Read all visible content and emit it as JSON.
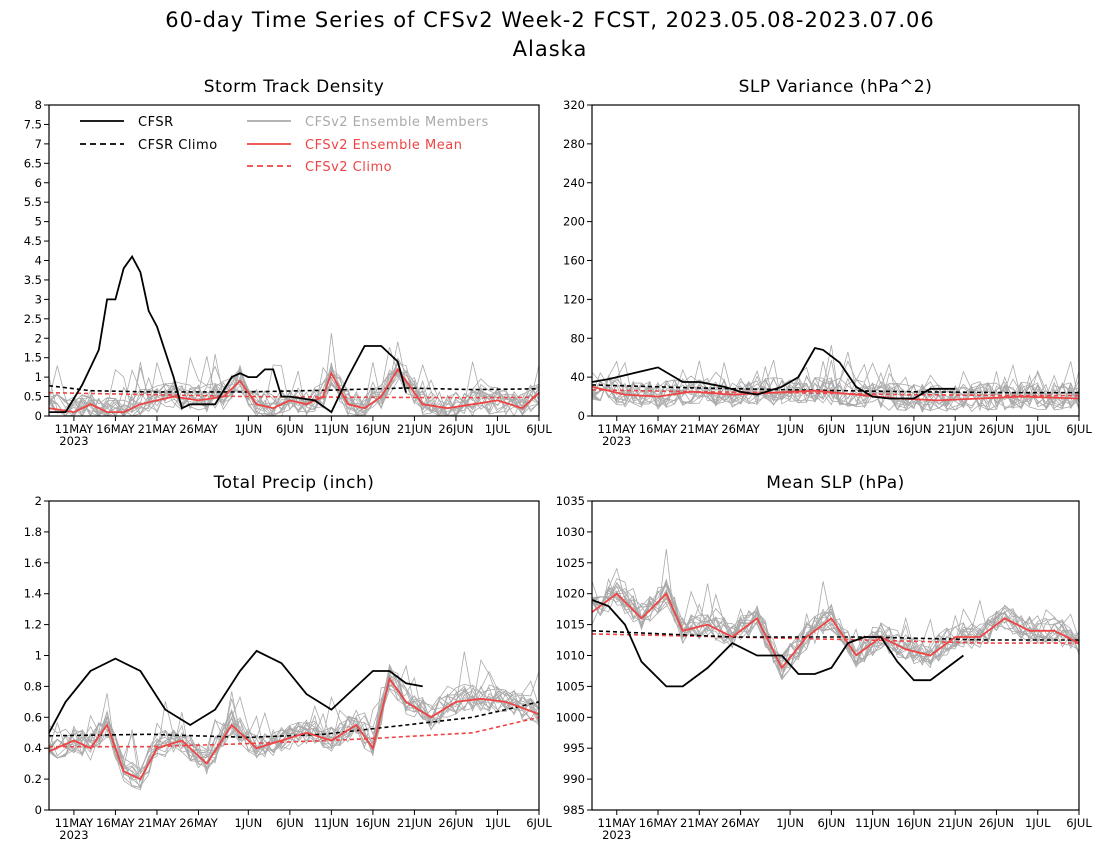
{
  "title_line1": "60-day Time Series of CFSv2 Week-2 FCST, 2023.05.08-2023.07.06",
  "title_line2": "Alaska",
  "legend": {
    "cfsr": "CFSR",
    "cfsr_climo": "CFSR Climo",
    "members": "CFSv2 Ensemble Members",
    "ens_mean": "CFSv2 Ensemble Mean",
    "cfsv2_climo": "CFSv2 Climo"
  },
  "colors": {
    "cfsr": "#000000",
    "cfsr_climo": "#000000",
    "members": "#aaaaaa",
    "ens_mean": "#ee4444",
    "cfsv2_climo": "#ee4444"
  },
  "x_axis": {
    "start_date": "2023-05-08",
    "end_date": "2023-07-06",
    "tick_labels": [
      "11MAY",
      "16MAY",
      "21MAY",
      "26MAY",
      "1JUN",
      "6JUN",
      "11JUN",
      "16JUN",
      "21JUN",
      "26JUN",
      "1JUL",
      "6JUL"
    ],
    "year_label": "2023"
  },
  "chart_data": [
    {
      "type": "line",
      "title": "Storm Track Density",
      "ylim": [
        0,
        8
      ],
      "yticks": [
        "0",
        "0.5",
        "1",
        "1.5",
        "2",
        "2.5",
        "3",
        "3.5",
        "4",
        "4.5",
        "5",
        "5.5",
        "6",
        "6.5",
        "7",
        "7.5",
        "8"
      ],
      "grid": false,
      "legend_position": "top",
      "series": [
        {
          "name": "CFSR",
          "style": "solid",
          "color": "#000000",
          "x": [
            "2023-05-08",
            "2023-05-10",
            "2023-05-12",
            "2023-05-14",
            "2023-05-15",
            "2023-05-16",
            "2023-05-17",
            "2023-05-18",
            "2023-05-19",
            "2023-05-20",
            "2023-05-21",
            "2023-05-23",
            "2023-05-24",
            "2023-05-25",
            "2023-05-26",
            "2023-05-28",
            "2023-05-30",
            "2023-05-31",
            "2023-06-01",
            "2023-06-02",
            "2023-06-03",
            "2023-06-04",
            "2023-06-05",
            "2023-06-06",
            "2023-06-09",
            "2023-06-11",
            "2023-06-13",
            "2023-06-15",
            "2023-06-17",
            "2023-06-19",
            "2023-06-20"
          ],
          "values": [
            0.1,
            0.1,
            0.8,
            1.7,
            3.0,
            3.0,
            3.8,
            4.1,
            3.7,
            2.7,
            2.3,
            1.0,
            0.2,
            0.3,
            0.3,
            0.3,
            1.0,
            1.1,
            1.0,
            1.0,
            1.2,
            1.2,
            0.5,
            0.5,
            0.4,
            0.1,
            1.0,
            1.8,
            1.8,
            1.4,
            0.6
          ]
        },
        {
          "name": "CFSR Climo",
          "style": "dashed",
          "color": "#000000",
          "x": [
            "2023-05-08",
            "2023-05-13",
            "2023-05-20",
            "2023-06-01",
            "2023-06-10",
            "2023-06-20",
            "2023-06-28",
            "2023-07-06"
          ],
          "values": [
            0.78,
            0.65,
            0.62,
            0.62,
            0.66,
            0.72,
            0.68,
            0.7
          ]
        },
        {
          "name": "CFSv2 Ensemble Mean",
          "style": "solid",
          "color": "#ee4444",
          "x": [
            "2023-05-08",
            "2023-05-11",
            "2023-05-13",
            "2023-05-15",
            "2023-05-17",
            "2023-05-19",
            "2023-05-21",
            "2023-05-23",
            "2023-05-26",
            "2023-05-29",
            "2023-05-31",
            "2023-06-02",
            "2023-06-04",
            "2023-06-06",
            "2023-06-08",
            "2023-06-10",
            "2023-06-11",
            "2023-06-13",
            "2023-06-15",
            "2023-06-17",
            "2023-06-19",
            "2023-06-22",
            "2023-06-25",
            "2023-06-28",
            "2023-07-01",
            "2023-07-04",
            "2023-07-06"
          ],
          "values": [
            0.2,
            0.1,
            0.3,
            0.1,
            0.1,
            0.3,
            0.4,
            0.5,
            0.4,
            0.5,
            0.9,
            0.3,
            0.2,
            0.4,
            0.3,
            0.5,
            1.1,
            0.3,
            0.2,
            0.5,
            1.2,
            0.3,
            0.2,
            0.3,
            0.4,
            0.2,
            0.6
          ]
        },
        {
          "name": "CFSv2 Climo",
          "style": "dashed",
          "color": "#ee4444",
          "x": [
            "2023-05-08",
            "2023-05-20",
            "2023-06-01",
            "2023-06-15",
            "2023-06-28",
            "2023-07-06"
          ],
          "values": [
            0.6,
            0.55,
            0.5,
            0.48,
            0.47,
            0.48
          ]
        }
      ]
    },
    {
      "type": "line",
      "title": "SLP Variance (hPa^2)",
      "ylim": [
        0,
        320
      ],
      "yticks": [
        "0",
        "40",
        "80",
        "120",
        "160",
        "200",
        "240",
        "280",
        "320"
      ],
      "grid": false,
      "series": [
        {
          "name": "CFSR",
          "style": "solid",
          "color": "#000000",
          "x": [
            "2023-05-08",
            "2023-05-10",
            "2023-05-12",
            "2023-05-16",
            "2023-05-19",
            "2023-05-21",
            "2023-05-24",
            "2023-05-26",
            "2023-05-28",
            "2023-05-31",
            "2023-06-02",
            "2023-06-03",
            "2023-06-04",
            "2023-06-05",
            "2023-06-07",
            "2023-06-09",
            "2023-06-11",
            "2023-06-13",
            "2023-06-16",
            "2023-06-18",
            "2023-06-21"
          ],
          "values": [
            35,
            38,
            42,
            50,
            35,
            35,
            30,
            25,
            22,
            30,
            40,
            55,
            70,
            68,
            55,
            30,
            20,
            18,
            18,
            28,
            28
          ]
        },
        {
          "name": "CFSR Climo",
          "style": "dashed",
          "color": "#000000",
          "x": [
            "2023-05-08",
            "2023-05-20",
            "2023-06-01",
            "2023-06-15",
            "2023-06-28",
            "2023-07-06"
          ],
          "values": [
            32,
            29,
            27,
            25,
            24,
            24
          ]
        },
        {
          "name": "CFSv2 Ensemble Mean",
          "style": "solid",
          "color": "#ee4444",
          "x": [
            "2023-05-08",
            "2023-05-12",
            "2023-05-16",
            "2023-05-20",
            "2023-05-25",
            "2023-05-30",
            "2023-06-04",
            "2023-06-09",
            "2023-06-14",
            "2023-06-19",
            "2023-06-24",
            "2023-06-29",
            "2023-07-06"
          ],
          "values": [
            30,
            22,
            20,
            25,
            22,
            24,
            26,
            22,
            18,
            16,
            18,
            20,
            18
          ]
        },
        {
          "name": "CFSv2 Climo",
          "style": "dashed",
          "color": "#ee4444",
          "x": [
            "2023-05-08",
            "2023-05-20",
            "2023-06-01",
            "2023-06-15",
            "2023-06-28",
            "2023-07-06"
          ],
          "values": [
            27,
            25,
            24,
            22,
            21,
            21
          ]
        }
      ]
    },
    {
      "type": "line",
      "title": "Total Precip (inch)",
      "ylim": [
        0,
        2
      ],
      "yticks": [
        "0",
        "0.2",
        "0.4",
        "0.6",
        "0.8",
        "1",
        "1.2",
        "1.4",
        "1.6",
        "1.8",
        "2"
      ],
      "grid": false,
      "series": [
        {
          "name": "CFSR",
          "style": "solid",
          "color": "#000000",
          "x": [
            "2023-05-08",
            "2023-05-10",
            "2023-05-13",
            "2023-05-16",
            "2023-05-19",
            "2023-05-22",
            "2023-05-25",
            "2023-05-28",
            "2023-05-31",
            "2023-06-02",
            "2023-06-05",
            "2023-06-08",
            "2023-06-11",
            "2023-06-13",
            "2023-06-16",
            "2023-06-18",
            "2023-06-20",
            "2023-06-22"
          ],
          "values": [
            0.5,
            0.7,
            0.9,
            0.98,
            0.9,
            0.65,
            0.55,
            0.65,
            0.9,
            1.03,
            0.95,
            0.75,
            0.65,
            0.75,
            0.9,
            0.9,
            0.82,
            0.8
          ]
        },
        {
          "name": "CFSR Climo",
          "style": "dashed",
          "color": "#000000",
          "x": [
            "2023-05-08",
            "2023-05-20",
            "2023-06-01",
            "2023-06-10",
            "2023-06-20",
            "2023-06-28",
            "2023-07-06"
          ],
          "values": [
            0.48,
            0.49,
            0.47,
            0.49,
            0.55,
            0.6,
            0.7
          ]
        },
        {
          "name": "CFSv2 Ensemble Mean",
          "style": "solid",
          "color": "#ee4444",
          "x": [
            "2023-05-08",
            "2023-05-11",
            "2023-05-13",
            "2023-05-15",
            "2023-05-17",
            "2023-05-19",
            "2023-05-21",
            "2023-05-24",
            "2023-05-27",
            "2023-05-30",
            "2023-06-02",
            "2023-06-05",
            "2023-06-08",
            "2023-06-11",
            "2023-06-14",
            "2023-06-16",
            "2023-06-18",
            "2023-06-20",
            "2023-06-23",
            "2023-06-26",
            "2023-06-29",
            "2023-07-02",
            "2023-07-06"
          ],
          "values": [
            0.38,
            0.45,
            0.4,
            0.55,
            0.25,
            0.2,
            0.4,
            0.45,
            0.3,
            0.55,
            0.4,
            0.45,
            0.5,
            0.45,
            0.55,
            0.4,
            0.85,
            0.7,
            0.6,
            0.7,
            0.72,
            0.7,
            0.62
          ]
        },
        {
          "name": "CFSv2 Climo",
          "style": "dashed",
          "color": "#ee4444",
          "x": [
            "2023-05-08",
            "2023-05-20",
            "2023-06-01",
            "2023-06-15",
            "2023-06-28",
            "2023-07-06"
          ],
          "values": [
            0.41,
            0.41,
            0.43,
            0.46,
            0.5,
            0.6
          ]
        }
      ]
    },
    {
      "type": "line",
      "title": "Mean SLP (hPa)",
      "ylim": [
        985,
        1035
      ],
      "yticks": [
        "985",
        "990",
        "995",
        "1000",
        "1005",
        "1010",
        "1015",
        "1020",
        "1025",
        "1030",
        "1035"
      ],
      "grid": false,
      "series": [
        {
          "name": "CFSR",
          "style": "solid",
          "color": "#000000",
          "x": [
            "2023-05-08",
            "2023-05-10",
            "2023-05-12",
            "2023-05-14",
            "2023-05-17",
            "2023-05-19",
            "2023-05-22",
            "2023-05-25",
            "2023-05-28",
            "2023-05-31",
            "2023-06-02",
            "2023-06-04",
            "2023-06-06",
            "2023-06-08",
            "2023-06-10",
            "2023-06-12",
            "2023-06-14",
            "2023-06-16",
            "2023-06-18",
            "2023-06-20",
            "2023-06-22"
          ],
          "values": [
            1019,
            1018,
            1015,
            1009,
            1005,
            1005,
            1008,
            1012,
            1010,
            1010,
            1007,
            1007,
            1008,
            1012,
            1013,
            1013,
            1009,
            1006,
            1006,
            1008,
            1010
          ]
        },
        {
          "name": "CFSR Climo",
          "style": "dashed",
          "color": "#000000",
          "x": [
            "2023-05-08",
            "2023-05-25",
            "2023-06-10",
            "2023-06-25",
            "2023-07-06"
          ],
          "values": [
            1014,
            1013,
            1013,
            1012.5,
            1012.5
          ]
        },
        {
          "name": "CFSv2 Ensemble Mean",
          "style": "solid",
          "color": "#ee4444",
          "x": [
            "2023-05-08",
            "2023-05-11",
            "2023-05-14",
            "2023-05-17",
            "2023-05-19",
            "2023-05-22",
            "2023-05-25",
            "2023-05-28",
            "2023-05-31",
            "2023-06-03",
            "2023-06-06",
            "2023-06-09",
            "2023-06-12",
            "2023-06-15",
            "2023-06-18",
            "2023-06-21",
            "2023-06-24",
            "2023-06-27",
            "2023-06-30",
            "2023-07-03",
            "2023-07-06"
          ],
          "values": [
            1017,
            1020,
            1016,
            1020,
            1014,
            1015,
            1013,
            1016,
            1008,
            1013,
            1016,
            1010,
            1013,
            1011,
            1010,
            1013,
            1013,
            1016,
            1014,
            1014,
            1012
          ]
        },
        {
          "name": "CFSv2 Climo",
          "style": "dashed",
          "color": "#ee4444",
          "x": [
            "2023-05-08",
            "2023-05-25",
            "2023-06-10",
            "2023-06-25",
            "2023-07-06"
          ],
          "values": [
            1013.5,
            1013,
            1012.5,
            1012,
            1012
          ]
        }
      ]
    }
  ]
}
